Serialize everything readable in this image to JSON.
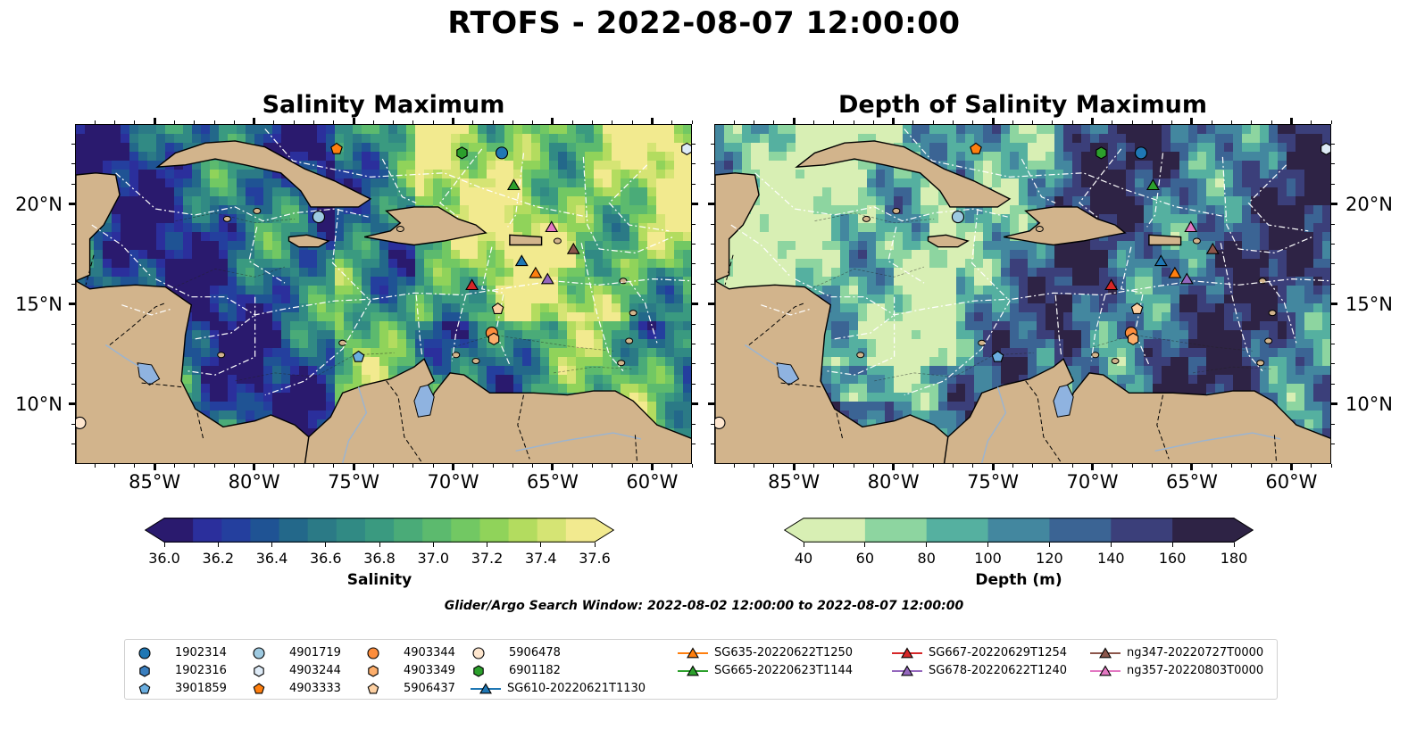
{
  "figure": {
    "title": "RTOFS - 2022-08-07 12:00:00",
    "search_window": "Glider/Argo Search Window: 2022-08-02 12:00:00 to 2022-08-07 12:00:00"
  },
  "panels": [
    {
      "title": "Salinity Maximum",
      "field": "salinity",
      "colorbar": {
        "label": "Salinity",
        "ticks": [
          "36.0",
          "36.2",
          "36.4",
          "36.6",
          "36.8",
          "37.0",
          "37.2",
          "37.4",
          "37.6"
        ],
        "colors": [
          "#2a1a6e",
          "#2b2f9c",
          "#243f9e",
          "#1f5394",
          "#23688a",
          "#2b7a86",
          "#318a84",
          "#3a9a80",
          "#4aab78",
          "#5cba6e",
          "#72c863",
          "#90d35a",
          "#b3dc5f",
          "#d5e474",
          "#f2ea8f"
        ],
        "extend": "both"
      }
    },
    {
      "title": "Depth of Salinity Maximum",
      "field": "depth",
      "colorbar": {
        "label": "Depth (m)",
        "ticks": [
          "40",
          "60",
          "80",
          "100",
          "120",
          "140",
          "160",
          "180"
        ],
        "colors": [
          "#d8efb4",
          "#8dd5a0",
          "#55b0a0",
          "#43879f",
          "#3b6494",
          "#3b3f7a",
          "#2e2345"
        ],
        "extend": "both"
      }
    }
  ],
  "map": {
    "lon_range": [
      -89,
      -58
    ],
    "lat_range": [
      7,
      24
    ],
    "x_ticks": [
      "85°W",
      "80°W",
      "75°W",
      "70°W",
      "65°W",
      "60°W"
    ],
    "x_tick_values": [
      -85,
      -80,
      -75,
      -70,
      -65,
      -60
    ],
    "y_ticks": [
      "20°N",
      "15°N",
      "10°N"
    ],
    "y_tick_values": [
      20,
      15,
      10
    ],
    "land_color": "#d2b48c",
    "eez_line_color": "#ffffff"
  },
  "legend": {
    "items": [
      {
        "label": "1902314",
        "marker": "circle",
        "color": "#1f77b4",
        "line": false
      },
      {
        "label": "1902316",
        "marker": "hexagon",
        "color": "#3a7fbf",
        "line": false
      },
      {
        "label": "3901859",
        "marker": "pentagon",
        "color": "#6aaee0",
        "line": false
      },
      {
        "label": "4901719",
        "marker": "circle",
        "color": "#9ecae1",
        "line": false
      },
      {
        "label": "4903244",
        "marker": "hexagon",
        "color": "#deebf7",
        "line": false
      },
      {
        "label": "4903333",
        "marker": "pentagon",
        "color": "#ff7f0e",
        "line": false
      },
      {
        "label": "4903344",
        "marker": "circle",
        "color": "#fd8d3c",
        "line": false
      },
      {
        "label": "4903349",
        "marker": "hexagon",
        "color": "#fdae6b",
        "line": false
      },
      {
        "label": "5906437",
        "marker": "pentagon",
        "color": "#fdd0a2",
        "line": false
      },
      {
        "label": "5906478",
        "marker": "circle",
        "color": "#fee6ce",
        "line": false
      },
      {
        "label": "6901182",
        "marker": "hexagon",
        "color": "#2ca02c",
        "line": false
      },
      {
        "label": "SG610-20220621T1130",
        "marker": "triangle",
        "color": "#1f77b4",
        "line": true
      },
      {
        "label": "SG635-20220622T1250",
        "marker": "triangle",
        "color": "#ff7f0e",
        "line": true
      },
      {
        "label": "SG665-20220623T1144",
        "marker": "triangle",
        "color": "#2ca02c",
        "line": true
      },
      {
        "label": "SG667-20220629T1254",
        "marker": "triangle",
        "color": "#d62728",
        "line": true
      },
      {
        "label": "SG678-20220622T1240",
        "marker": "triangle",
        "color": "#9467bd",
        "line": true
      },
      {
        "label": "ng347-20220727T0000",
        "marker": "triangle",
        "color": "#8c564b",
        "line": true
      },
      {
        "label": "ng357-20220803T0000",
        "marker": "triangle",
        "color": "#e377c2",
        "line": true
      }
    ]
  },
  "observations": [
    {
      "id": "4903333",
      "lon": -75.9,
      "lat": 22.8
    },
    {
      "id": "6901182",
      "lon": -69.6,
      "lat": 22.6
    },
    {
      "id": "1902314",
      "lon": -67.6,
      "lat": 22.6
    },
    {
      "id": "4903244",
      "lon": -58.3,
      "lat": 22.8
    },
    {
      "id": "SG665-20220623T1144",
      "lon": -67.0,
      "lat": 21.0
    },
    {
      "id": "4901719",
      "lon": -76.8,
      "lat": 19.4
    },
    {
      "id": "ng357-20220803T0000",
      "lon": -65.1,
      "lat": 18.9
    },
    {
      "id": "ng347-20220727T0000",
      "lon": -64.0,
      "lat": 17.8
    },
    {
      "id": "SG610-20220621T1130",
      "lon": -66.6,
      "lat": 17.2
    },
    {
      "id": "SG635-20220622T1250",
      "lon": -65.9,
      "lat": 16.6
    },
    {
      "id": "SG678-20220622T1240",
      "lon": -65.3,
      "lat": 16.3
    },
    {
      "id": "SG667-20220629T1254",
      "lon": -69.1,
      "lat": 16.0
    },
    {
      "id": "5906437",
      "lon": -67.8,
      "lat": 14.8
    },
    {
      "id": "4903344",
      "lon": -68.1,
      "lat": 13.6
    },
    {
      "id": "4903349",
      "lon": -68.0,
      "lat": 13.3
    },
    {
      "id": "3901859",
      "lon": -74.8,
      "lat": 12.4
    },
    {
      "id": "5906478",
      "lon": -88.8,
      "lat": 9.1
    }
  ]
}
